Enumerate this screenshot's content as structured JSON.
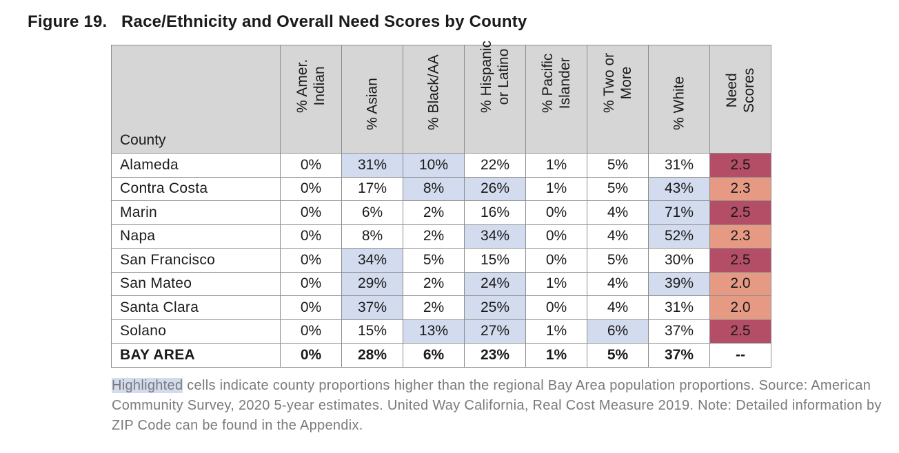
{
  "figure": {
    "label": "Figure 19.",
    "title": "Race/Ethnicity and Overall Need Scores by County"
  },
  "table": {
    "county_header": "County",
    "columns": [
      {
        "line1": "% Amer.",
        "line2": "Indian"
      },
      {
        "line1": "% Asian",
        "line2": ""
      },
      {
        "line1": "% Black/AA",
        "line2": ""
      },
      {
        "line1": "% Hispanic",
        "line2": "or Latino"
      },
      {
        "line1": "% Pacific",
        "line2": "Islander"
      },
      {
        "line1": "% Two or",
        "line2": "More"
      },
      {
        "line1": "% White",
        "line2": ""
      },
      {
        "line1": "Need",
        "line2": "Scores"
      }
    ],
    "rows": [
      {
        "county": "Alameda",
        "values": [
          "0%",
          "31%",
          "10%",
          "22%",
          "1%",
          "5%",
          "31%"
        ],
        "highlight": [
          false,
          true,
          true,
          false,
          false,
          false,
          false
        ],
        "need": "2.5",
        "need_level": "high"
      },
      {
        "county": "Contra Costa",
        "values": [
          "0%",
          "17%",
          "8%",
          "26%",
          "1%",
          "5%",
          "43%"
        ],
        "highlight": [
          false,
          false,
          true,
          true,
          false,
          false,
          true
        ],
        "need": "2.3",
        "need_level": "mid"
      },
      {
        "county": "Marin",
        "values": [
          "0%",
          "6%",
          "2%",
          "16%",
          "0%",
          "4%",
          "71%"
        ],
        "highlight": [
          false,
          false,
          false,
          false,
          false,
          false,
          true
        ],
        "need": "2.5",
        "need_level": "high"
      },
      {
        "county": "Napa",
        "values": [
          "0%",
          "8%",
          "2%",
          "34%",
          "0%",
          "4%",
          "52%"
        ],
        "highlight": [
          false,
          false,
          false,
          true,
          false,
          false,
          true
        ],
        "need": "2.3",
        "need_level": "mid"
      },
      {
        "county": "San Francisco",
        "values": [
          "0%",
          "34%",
          "5%",
          "15%",
          "0%",
          "5%",
          "30%"
        ],
        "highlight": [
          false,
          true,
          false,
          false,
          false,
          false,
          false
        ],
        "need": "2.5",
        "need_level": "high"
      },
      {
        "county": "San Mateo",
        "values": [
          "0%",
          "29%",
          "2%",
          "24%",
          "1%",
          "4%",
          "39%"
        ],
        "highlight": [
          false,
          true,
          false,
          true,
          false,
          false,
          true
        ],
        "need": "2.0",
        "need_level": "mid"
      },
      {
        "county": "Santa Clara",
        "values": [
          "0%",
          "37%",
          "2%",
          "25%",
          "0%",
          "4%",
          "31%"
        ],
        "highlight": [
          false,
          true,
          false,
          true,
          false,
          false,
          false
        ],
        "need": "2.0",
        "need_level": "mid"
      },
      {
        "county": "Solano",
        "values": [
          "0%",
          "15%",
          "13%",
          "27%",
          "1%",
          "6%",
          "37%"
        ],
        "highlight": [
          false,
          false,
          true,
          true,
          false,
          true,
          false
        ],
        "need": "2.5",
        "need_level": "high"
      }
    ],
    "total": {
      "county": "BAY AREA",
      "values": [
        "0%",
        "28%",
        "6%",
        "23%",
        "1%",
        "5%",
        "37%"
      ],
      "need": "--"
    }
  },
  "notes": {
    "highlight_word": "Highlighted",
    "highlight_rest": " cells indicate county proportions higher than the regional Bay Area population proportions.",
    "source": "Source: American Community Survey, 2020 5-year estimates. United Way California, Real Cost Measure 2019. Note: Detailed information by ZIP Code can be found in the Appendix."
  },
  "colors": {
    "highlight": "#d3dbee",
    "need_high": "#b34e66",
    "need_mid": "#e69983",
    "header_bg": "#d6d6d6"
  }
}
